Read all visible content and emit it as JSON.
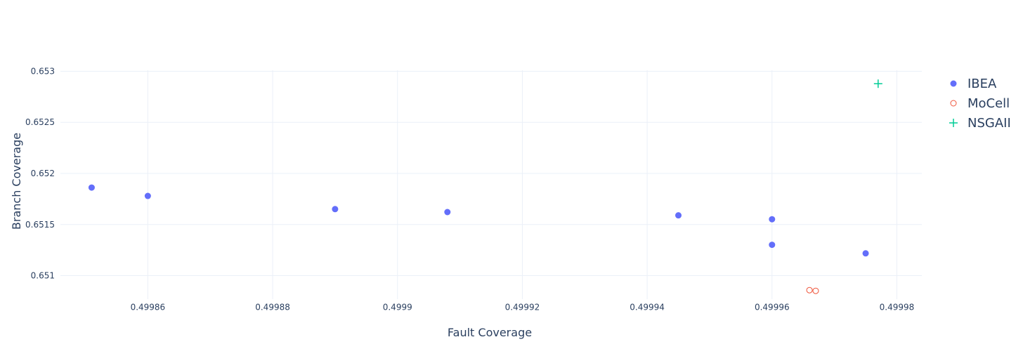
{
  "chart_data": {
    "type": "scatter",
    "xlabel": "Fault Coverage",
    "ylabel": "Branch Coverage",
    "xlim": [
      0.499846,
      0.499984
    ],
    "ylim": [
      0.65077,
      0.65301
    ],
    "x_ticks": [
      0.49986,
      0.49988,
      0.4999,
      0.49992,
      0.49994,
      0.49996,
      0.49998
    ],
    "x_tick_labels": [
      "0.49986",
      "0.49988",
      "0.4999",
      "0.49992",
      "0.49994",
      "0.49996",
      "0.49998"
    ],
    "y_ticks": [
      0.651,
      0.6515,
      0.652,
      0.6525,
      0.653
    ],
    "y_tick_labels": [
      "0.651",
      "0.6515",
      "0.652",
      "0.6525",
      "0.653"
    ],
    "grid": true,
    "legend_position": "right",
    "series": [
      {
        "name": "IBEA",
        "marker": "circle",
        "color": "#636efa",
        "points": [
          [
            0.499851,
            0.651862
          ],
          [
            0.49986,
            0.65178
          ],
          [
            0.49989,
            0.651651
          ],
          [
            0.499908,
            0.651622
          ],
          [
            0.499945,
            0.65159
          ],
          [
            0.49996,
            0.651552
          ],
          [
            0.49996,
            0.651302
          ],
          [
            0.499975,
            0.651218
          ]
        ]
      },
      {
        "name": "MoCell",
        "marker": "circle-open",
        "color": "#ef553b",
        "points": [
          [
            0.499966,
            0.650858
          ],
          [
            0.499967,
            0.650851
          ]
        ]
      },
      {
        "name": "NSGAII",
        "marker": "cross-thin",
        "color": "#00cc96",
        "points": [
          [
            0.499977,
            0.652878
          ]
        ]
      }
    ]
  }
}
